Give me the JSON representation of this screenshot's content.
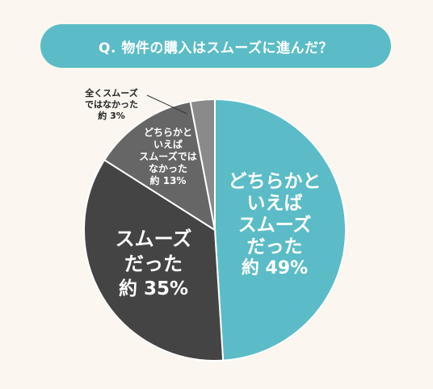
{
  "title": "Q. 物件の購入はスムーズに進んだ？",
  "chart_data": {
    "type": "pie",
    "title": "Q. 物件の購入はスムーズに進んだ？",
    "slices": [
      {
        "label_lines": [
          "どちらかと",
          "いえば",
          "スムーズ",
          "だった"
        ],
        "value_label": "約 49%",
        "value": 49,
        "color": "#5bbcc7"
      },
      {
        "label_lines": [
          "スムーズ",
          "だった"
        ],
        "value_label": "約 35%",
        "value": 35,
        "color": "#444444"
      },
      {
        "label_lines": [
          "どちらかと",
          "いえば",
          "スムーズでは",
          "なかった"
        ],
        "value_label": "約 13%",
        "value": 13,
        "color": "#666666"
      },
      {
        "label_lines": [
          "全くスムーズ",
          "ではなかった"
        ],
        "value_label": "約 3%",
        "value": 3,
        "color": "#8a8a8a"
      }
    ],
    "start_angle_deg": 0,
    "direction": "clockwise"
  }
}
